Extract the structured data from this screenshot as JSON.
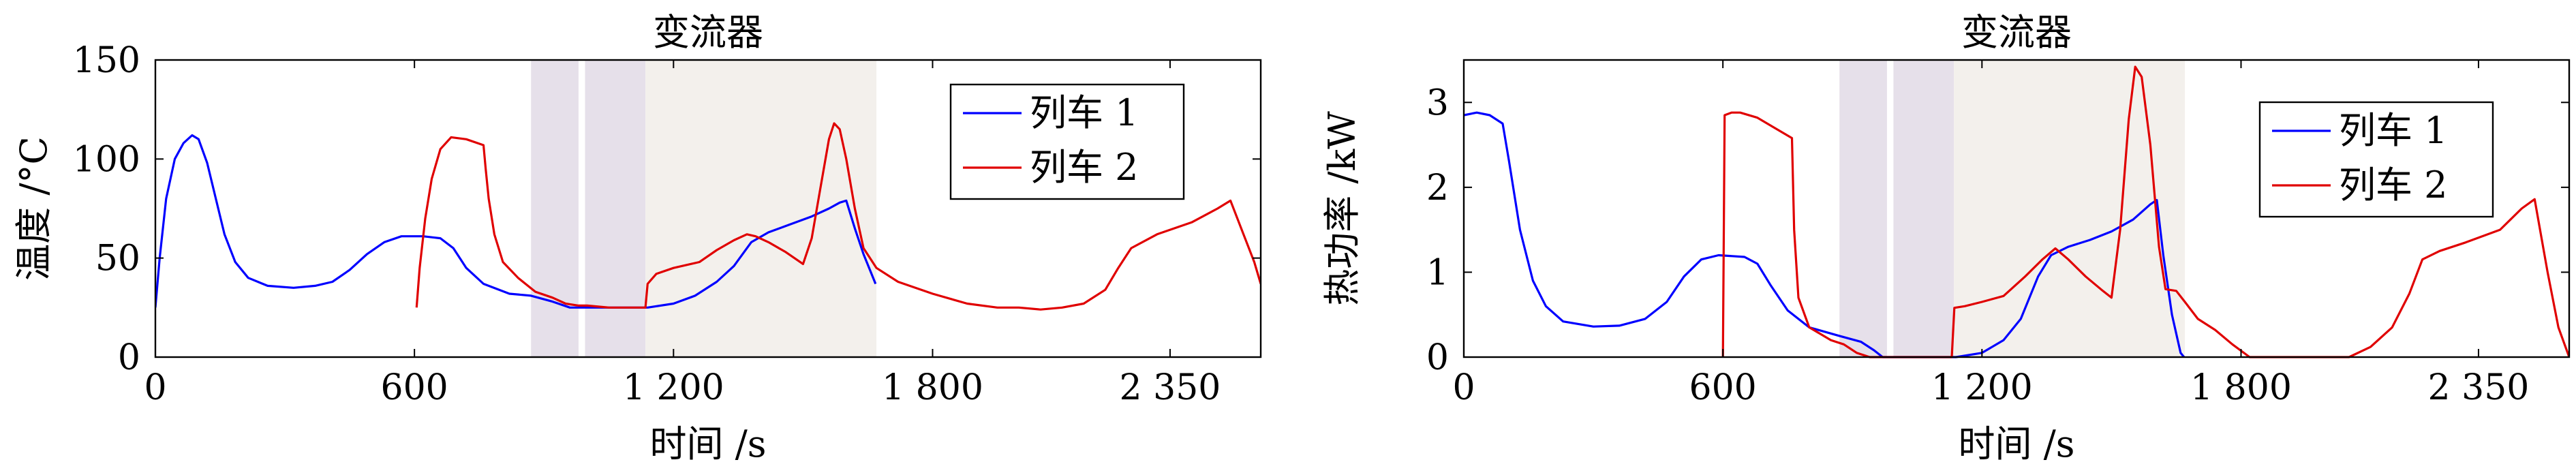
{
  "chart_data": [
    {
      "type": "line",
      "title": "变流器",
      "xlabel": "时间 /s",
      "ylabel": "温度 /°C",
      "xlim": [
        0,
        2560
      ],
      "ylim": [
        0,
        150
      ],
      "xticks": [
        0,
        600,
        1200,
        1800,
        2350
      ],
      "xtick_labels": [
        "0",
        "600",
        "1 200",
        "1 800",
        "2 350"
      ],
      "yticks": [
        0,
        50,
        100,
        150
      ],
      "ytick_labels": [
        "0",
        "50",
        "100",
        "150"
      ],
      "shaded_regions": [
        {
          "x": [
            870,
            980
          ],
          "color": "#e6e0ea"
        },
        {
          "x": [
            995,
            1135
          ],
          "color": "#e6e0ea"
        },
        {
          "x": [
            1135,
            1670
          ],
          "color": "#f3f0ec"
        }
      ],
      "legend": {
        "position": "top-right",
        "entries": [
          "列车 1",
          "列车 2"
        ]
      },
      "grid": false,
      "series": [
        {
          "name": "列车 1",
          "color": "#0000ff",
          "points": [
            [
              0,
              25
            ],
            [
              10,
              50
            ],
            [
              25,
              80
            ],
            [
              45,
              100
            ],
            [
              65,
              108
            ],
            [
              85,
              112
            ],
            [
              100,
              110
            ],
            [
              120,
              98
            ],
            [
              140,
              80
            ],
            [
              160,
              62
            ],
            [
              185,
              48
            ],
            [
              215,
              40
            ],
            [
              260,
              36
            ],
            [
              320,
              35
            ],
            [
              370,
              36
            ],
            [
              410,
              38
            ],
            [
              450,
              44
            ],
            [
              490,
              52
            ],
            [
              530,
              58
            ],
            [
              570,
              61
            ],
            [
              620,
              61
            ],
            [
              660,
              60
            ],
            [
              690,
              55
            ],
            [
              720,
              45
            ],
            [
              760,
              37
            ],
            [
              820,
              32
            ],
            [
              870,
              31
            ],
            [
              920,
              28
            ],
            [
              960,
              25
            ],
            [
              1000,
              25
            ],
            [
              1100,
              25
            ],
            [
              1140,
              25
            ],
            [
              1200,
              27
            ],
            [
              1250,
              31
            ],
            [
              1300,
              38
            ],
            [
              1340,
              46
            ],
            [
              1380,
              58
            ],
            [
              1420,
              63
            ],
            [
              1470,
              67
            ],
            [
              1520,
              71
            ],
            [
              1560,
              75
            ],
            [
              1585,
              78
            ],
            [
              1600,
              79
            ],
            [
              1620,
              65
            ],
            [
              1640,
              52
            ],
            [
              1668,
              37
            ]
          ]
        },
        {
          "name": "列车 2",
          "color": "#e00000",
          "points": [
            [
              605,
              25
            ],
            [
              612,
              45
            ],
            [
              625,
              70
            ],
            [
              640,
              90
            ],
            [
              660,
              105
            ],
            [
              685,
              111
            ],
            [
              720,
              110
            ],
            [
              760,
              107
            ],
            [
              765,
              95
            ],
            [
              772,
              80
            ],
            [
              785,
              62
            ],
            [
              805,
              48
            ],
            [
              840,
              40
            ],
            [
              880,
              33
            ],
            [
              920,
              30
            ],
            [
              950,
              27
            ],
            [
              980,
              26
            ],
            [
              1000,
              26
            ],
            [
              1050,
              25
            ],
            [
              1100,
              25
            ],
            [
              1130,
              25
            ],
            [
              1135,
              25
            ],
            [
              1140,
              37
            ],
            [
              1160,
              42
            ],
            [
              1200,
              45
            ],
            [
              1260,
              48
            ],
            [
              1300,
              54
            ],
            [
              1340,
              59
            ],
            [
              1370,
              62
            ],
            [
              1390,
              61
            ],
            [
              1420,
              58
            ],
            [
              1460,
              53
            ],
            [
              1500,
              47
            ],
            [
              1520,
              60
            ],
            [
              1540,
              85
            ],
            [
              1560,
              110
            ],
            [
              1572,
              118
            ],
            [
              1585,
              115
            ],
            [
              1600,
              100
            ],
            [
              1620,
              75
            ],
            [
              1640,
              55
            ],
            [
              1670,
              45
            ],
            [
              1720,
              38
            ],
            [
              1800,
              32
            ],
            [
              1880,
              27
            ],
            [
              1950,
              25
            ],
            [
              2000,
              25
            ],
            [
              2050,
              24
            ],
            [
              2100,
              25
            ],
            [
              2150,
              27
            ],
            [
              2200,
              34
            ],
            [
              2230,
              45
            ],
            [
              2260,
              55
            ],
            [
              2320,
              62
            ],
            [
              2400,
              68
            ],
            [
              2460,
              75
            ],
            [
              2490,
              79
            ],
            [
              2520,
              62
            ],
            [
              2545,
              48
            ],
            [
              2560,
              37
            ]
          ]
        }
      ]
    },
    {
      "type": "line",
      "title": "变流器",
      "xlabel": "时间 /s",
      "ylabel": "热功率 /kW",
      "xlim": [
        0,
        2560
      ],
      "ylim": [
        0,
        3.5
      ],
      "xticks": [
        0,
        600,
        1200,
        1800,
        2350
      ],
      "xtick_labels": [
        "0",
        "600",
        "1 200",
        "1 800",
        "2 350"
      ],
      "yticks": [
        0,
        1,
        2,
        3
      ],
      "ytick_labels": [
        "0",
        "1",
        "2",
        "3"
      ],
      "shaded_regions": [
        {
          "x": [
            870,
            980
          ],
          "color": "#e6e0ea"
        },
        {
          "x": [
            995,
            1135
          ],
          "color": "#e6e0ea"
        },
        {
          "x": [
            1135,
            1670
          ],
          "color": "#f3f0ec"
        }
      ],
      "legend": {
        "position": "top-right",
        "entries": [
          "列车 1",
          "列车 2"
        ]
      },
      "grid": false,
      "series": [
        {
          "name": "列车 1",
          "color": "#0000ff",
          "points": [
            [
              0,
              2.85
            ],
            [
              30,
              2.88
            ],
            [
              60,
              2.85
            ],
            [
              90,
              2.75
            ],
            [
              105,
              2.3
            ],
            [
              130,
              1.5
            ],
            [
              160,
              0.9
            ],
            [
              190,
              0.6
            ],
            [
              230,
              0.42
            ],
            [
              300,
              0.36
            ],
            [
              360,
              0.37
            ],
            [
              420,
              0.45
            ],
            [
              470,
              0.65
            ],
            [
              510,
              0.95
            ],
            [
              550,
              1.15
            ],
            [
              590,
              1.2
            ],
            [
              650,
              1.18
            ],
            [
              680,
              1.1
            ],
            [
              710,
              0.85
            ],
            [
              750,
              0.55
            ],
            [
              800,
              0.35
            ],
            [
              870,
              0.25
            ],
            [
              920,
              0.18
            ],
            [
              950,
              0.08
            ],
            [
              970,
              0
            ],
            [
              1000,
              0
            ],
            [
              1100,
              0
            ],
            [
              1140,
              0
            ],
            [
              1200,
              0.05
            ],
            [
              1250,
              0.2
            ],
            [
              1290,
              0.45
            ],
            [
              1330,
              0.95
            ],
            [
              1360,
              1.2
            ],
            [
              1400,
              1.3
            ],
            [
              1450,
              1.38
            ],
            [
              1500,
              1.48
            ],
            [
              1550,
              1.62
            ],
            [
              1590,
              1.8
            ],
            [
              1605,
              1.85
            ],
            [
              1620,
              1.2
            ],
            [
              1640,
              0.5
            ],
            [
              1660,
              0.05
            ],
            [
              1668,
              0
            ]
          ]
        },
        {
          "name": "列车 2",
          "color": "#e00000",
          "points": [
            [
              600,
              0
            ],
            [
              604,
              2.85
            ],
            [
              620,
              2.88
            ],
            [
              640,
              2.88
            ],
            [
              680,
              2.82
            ],
            [
              720,
              2.7
            ],
            [
              760,
              2.58
            ],
            [
              765,
              1.5
            ],
            [
              775,
              0.7
            ],
            [
              800,
              0.35
            ],
            [
              850,
              0.2
            ],
            [
              880,
              0.15
            ],
            [
              910,
              0.05
            ],
            [
              940,
              0
            ],
            [
              1000,
              0
            ],
            [
              1100,
              0
            ],
            [
              1130,
              0
            ],
            [
              1136,
              0.58
            ],
            [
              1160,
              0.6
            ],
            [
              1200,
              0.65
            ],
            [
              1250,
              0.72
            ],
            [
              1300,
              0.95
            ],
            [
              1340,
              1.15
            ],
            [
              1370,
              1.28
            ],
            [
              1400,
              1.15
            ],
            [
              1440,
              0.95
            ],
            [
              1480,
              0.78
            ],
            [
              1500,
              0.7
            ],
            [
              1520,
              1.5
            ],
            [
              1540,
              2.8
            ],
            [
              1555,
              3.42
            ],
            [
              1570,
              3.3
            ],
            [
              1590,
              2.5
            ],
            [
              1610,
              1.3
            ],
            [
              1625,
              0.8
            ],
            [
              1650,
              0.78
            ],
            [
              1670,
              0.65
            ],
            [
              1700,
              0.45
            ],
            [
              1740,
              0.32
            ],
            [
              1780,
              0.15
            ],
            [
              1820,
              0
            ],
            [
              1900,
              0
            ],
            [
              1950,
              0
            ],
            [
              2000,
              0
            ],
            [
              2050,
              0
            ],
            [
              2100,
              0.12
            ],
            [
              2150,
              0.35
            ],
            [
              2190,
              0.75
            ],
            [
              2220,
              1.15
            ],
            [
              2260,
              1.25
            ],
            [
              2320,
              1.35
            ],
            [
              2400,
              1.5
            ],
            [
              2450,
              1.75
            ],
            [
              2480,
              1.86
            ],
            [
              2510,
              1.0
            ],
            [
              2535,
              0.35
            ],
            [
              2560,
              0
            ]
          ]
        }
      ]
    }
  ]
}
